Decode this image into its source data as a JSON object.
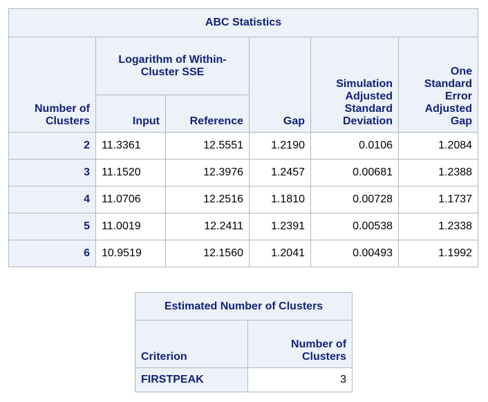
{
  "abc_table": {
    "title": "ABC Statistics",
    "headers": {
      "number_of_clusters": "Number of Clusters",
      "log_group": "Logarithm of Within-Cluster SSE",
      "input": "Input",
      "reference": "Reference",
      "gap": "Gap",
      "sim_adj_sd": "Simulation Adjusted Standard Deviation",
      "one_se_adj_gap": "One Standard Error Adjusted Gap"
    },
    "rows": [
      {
        "k": "2",
        "input": "11.3361",
        "reference": "12.5551",
        "gap": "1.2190",
        "sd": "0.0106",
        "adj_gap": "1.2084"
      },
      {
        "k": "3",
        "input": "11.1520",
        "reference": "12.3976",
        "gap": "1.2457",
        "sd": "0.00681",
        "adj_gap": "1.2388"
      },
      {
        "k": "4",
        "input": "11.0706",
        "reference": "12.2516",
        "gap": "1.1810",
        "sd": "0.00728",
        "adj_gap": "1.1737"
      },
      {
        "k": "5",
        "input": "11.0019",
        "reference": "12.2411",
        "gap": "1.2391",
        "sd": "0.00538",
        "adj_gap": "1.2338"
      },
      {
        "k": "6",
        "input": "10.9519",
        "reference": "12.1560",
        "gap": "1.2041",
        "sd": "0.00493",
        "adj_gap": "1.1992"
      }
    ]
  },
  "estimate_table": {
    "title": "Estimated Number of Clusters",
    "headers": {
      "criterion": "Criterion",
      "number_of_clusters": "Number of Clusters"
    },
    "rows": [
      {
        "criterion": "FIRSTPEAK",
        "value": "3"
      }
    ]
  },
  "colors": {
    "header_bg": "#edf2f9",
    "header_text": "#112277",
    "border": "#b0b7bb",
    "cell_text": "#000000"
  }
}
